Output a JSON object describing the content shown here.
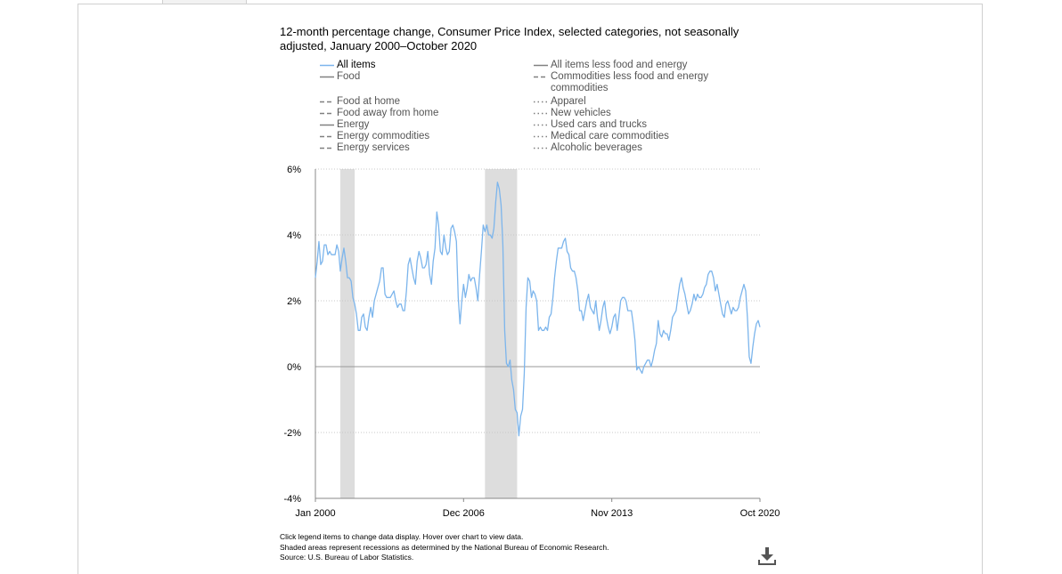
{
  "chart_data": {
    "type": "line",
    "title": "12-month percentage change, Consumer Price Index, selected categories, not seasonally adjusted, January 2000–October 2020",
    "x_tick_labels": [
      "Jan 2000",
      "Dec 2006",
      "Nov 2013",
      "Oct 2020"
    ],
    "y_tick_labels": [
      "6%",
      "4%",
      "2%",
      "0%",
      "-2%",
      "-4%"
    ],
    "ylim": [
      -4,
      6
    ],
    "y_ticks": [
      6,
      4,
      2,
      0,
      -2,
      -4
    ],
    "grid": "horizontal dotted",
    "legend_position": "top",
    "recessions": [
      {
        "start": "2001-03",
        "end": "2001-11"
      },
      {
        "start": "2007-12",
        "end": "2009-06"
      }
    ],
    "series": [
      {
        "name": "All items",
        "visible": true,
        "color": "#7cb5ec",
        "points": [
          [
            "2000-01",
            2.7
          ],
          [
            "2000-02",
            3.2
          ],
          [
            "2000-03",
            3.8
          ],
          [
            "2000-04",
            3.1
          ],
          [
            "2000-05",
            3.2
          ],
          [
            "2000-06",
            3.7
          ],
          [
            "2000-07",
            3.7
          ],
          [
            "2000-08",
            3.4
          ],
          [
            "2000-09",
            3.5
          ],
          [
            "2000-10",
            3.4
          ],
          [
            "2000-11",
            3.4
          ],
          [
            "2000-12",
            3.4
          ],
          [
            "2001-01",
            3.7
          ],
          [
            "2001-02",
            3.5
          ],
          [
            "2001-03",
            2.9
          ],
          [
            "2001-04",
            3.3
          ],
          [
            "2001-05",
            3.6
          ],
          [
            "2001-06",
            3.2
          ],
          [
            "2001-07",
            2.7
          ],
          [
            "2001-08",
            2.7
          ],
          [
            "2001-09",
            2.6
          ],
          [
            "2001-10",
            2.1
          ],
          [
            "2001-11",
            1.9
          ],
          [
            "2001-12",
            1.6
          ],
          [
            "2002-01",
            1.1
          ],
          [
            "2002-02",
            1.1
          ],
          [
            "2002-03",
            1.5
          ],
          [
            "2002-04",
            1.6
          ],
          [
            "2002-05",
            1.2
          ],
          [
            "2002-06",
            1.1
          ],
          [
            "2002-07",
            1.5
          ],
          [
            "2002-08",
            1.8
          ],
          [
            "2002-09",
            1.5
          ],
          [
            "2002-10",
            2.0
          ],
          [
            "2002-11",
            2.2
          ],
          [
            "2002-12",
            2.4
          ],
          [
            "2003-01",
            2.6
          ],
          [
            "2003-02",
            3.0
          ],
          [
            "2003-03",
            3.0
          ],
          [
            "2003-04",
            2.2
          ],
          [
            "2003-05",
            2.1
          ],
          [
            "2003-06",
            2.1
          ],
          [
            "2003-07",
            2.1
          ],
          [
            "2003-08",
            2.2
          ],
          [
            "2003-09",
            2.3
          ],
          [
            "2003-10",
            2.0
          ],
          [
            "2003-11",
            1.8
          ],
          [
            "2003-12",
            1.9
          ],
          [
            "2004-01",
            1.9
          ],
          [
            "2004-02",
            1.7
          ],
          [
            "2004-03",
            1.7
          ],
          [
            "2004-04",
            2.3
          ],
          [
            "2004-05",
            3.1
          ],
          [
            "2004-06",
            3.3
          ],
          [
            "2004-07",
            3.0
          ],
          [
            "2004-08",
            2.7
          ],
          [
            "2004-09",
            2.5
          ],
          [
            "2004-10",
            3.2
          ],
          [
            "2004-11",
            3.5
          ],
          [
            "2004-12",
            3.3
          ],
          [
            "2005-01",
            3.0
          ],
          [
            "2005-02",
            3.0
          ],
          [
            "2005-03",
            3.1
          ],
          [
            "2005-04",
            3.5
          ],
          [
            "2005-05",
            2.8
          ],
          [
            "2005-06",
            2.5
          ],
          [
            "2005-07",
            3.2
          ],
          [
            "2005-08",
            3.6
          ],
          [
            "2005-09",
            4.7
          ],
          [
            "2005-10",
            4.3
          ],
          [
            "2005-11",
            3.5
          ],
          [
            "2005-12",
            3.4
          ],
          [
            "2006-01",
            4.0
          ],
          [
            "2006-02",
            3.6
          ],
          [
            "2006-03",
            3.4
          ],
          [
            "2006-04",
            3.5
          ],
          [
            "2006-05",
            4.2
          ],
          [
            "2006-06",
            4.3
          ],
          [
            "2006-07",
            4.1
          ],
          [
            "2006-08",
            3.8
          ],
          [
            "2006-09",
            2.1
          ],
          [
            "2006-10",
            1.3
          ],
          [
            "2006-11",
            2.0
          ],
          [
            "2006-12",
            2.5
          ],
          [
            "2007-01",
            2.1
          ],
          [
            "2007-02",
            2.4
          ],
          [
            "2007-03",
            2.8
          ],
          [
            "2007-04",
            2.6
          ],
          [
            "2007-05",
            2.7
          ],
          [
            "2007-06",
            2.7
          ],
          [
            "2007-07",
            2.4
          ],
          [
            "2007-08",
            2.0
          ],
          [
            "2007-09",
            2.8
          ],
          [
            "2007-10",
            3.5
          ],
          [
            "2007-11",
            4.3
          ],
          [
            "2007-12",
            4.1
          ],
          [
            "2008-01",
            4.3
          ],
          [
            "2008-02",
            4.0
          ],
          [
            "2008-03",
            4.0
          ],
          [
            "2008-04",
            3.9
          ],
          [
            "2008-05",
            4.2
          ],
          [
            "2008-06",
            5.0
          ],
          [
            "2008-07",
            5.6
          ],
          [
            "2008-08",
            5.4
          ],
          [
            "2008-09",
            4.9
          ],
          [
            "2008-10",
            3.7
          ],
          [
            "2008-11",
            1.1
          ],
          [
            "2008-12",
            0.1
          ],
          [
            "2009-01",
            0.0
          ],
          [
            "2009-02",
            0.2
          ],
          [
            "2009-03",
            -0.4
          ],
          [
            "2009-04",
            -0.7
          ],
          [
            "2009-05",
            -1.3
          ],
          [
            "2009-06",
            -1.4
          ],
          [
            "2009-07",
            -2.1
          ],
          [
            "2009-08",
            -1.5
          ],
          [
            "2009-09",
            -1.3
          ],
          [
            "2009-10",
            -0.2
          ],
          [
            "2009-11",
            1.8
          ],
          [
            "2009-12",
            2.7
          ],
          [
            "2010-01",
            2.6
          ],
          [
            "2010-02",
            2.1
          ],
          [
            "2010-03",
            2.3
          ],
          [
            "2010-04",
            2.2
          ],
          [
            "2010-05",
            2.0
          ],
          [
            "2010-06",
            1.1
          ],
          [
            "2010-07",
            1.2
          ],
          [
            "2010-08",
            1.1
          ],
          [
            "2010-09",
            1.1
          ],
          [
            "2010-10",
            1.2
          ],
          [
            "2010-11",
            1.1
          ],
          [
            "2010-12",
            1.5
          ],
          [
            "2011-01",
            1.6
          ],
          [
            "2011-02",
            2.1
          ],
          [
            "2011-03",
            2.7
          ],
          [
            "2011-04",
            3.2
          ],
          [
            "2011-05",
            3.6
          ],
          [
            "2011-06",
            3.6
          ],
          [
            "2011-07",
            3.6
          ],
          [
            "2011-08",
            3.8
          ],
          [
            "2011-09",
            3.9
          ],
          [
            "2011-10",
            3.5
          ],
          [
            "2011-11",
            3.4
          ],
          [
            "2011-12",
            3.0
          ],
          [
            "2012-01",
            2.9
          ],
          [
            "2012-02",
            2.9
          ],
          [
            "2012-03",
            2.7
          ],
          [
            "2012-04",
            2.3
          ],
          [
            "2012-05",
            1.7
          ],
          [
            "2012-06",
            1.7
          ],
          [
            "2012-07",
            1.4
          ],
          [
            "2012-08",
            1.7
          ],
          [
            "2012-09",
            2.0
          ],
          [
            "2012-10",
            2.2
          ],
          [
            "2012-11",
            1.8
          ],
          [
            "2012-12",
            1.7
          ],
          [
            "2013-01",
            1.6
          ],
          [
            "2013-02",
            2.0
          ],
          [
            "2013-03",
            1.5
          ],
          [
            "2013-04",
            1.1
          ],
          [
            "2013-05",
            1.4
          ],
          [
            "2013-06",
            1.8
          ],
          [
            "2013-07",
            2.0
          ],
          [
            "2013-08",
            1.5
          ],
          [
            "2013-09",
            1.2
          ],
          [
            "2013-10",
            1.0
          ],
          [
            "2013-11",
            1.2
          ],
          [
            "2013-12",
            1.5
          ],
          [
            "2014-01",
            1.6
          ],
          [
            "2014-02",
            1.1
          ],
          [
            "2014-03",
            1.5
          ],
          [
            "2014-04",
            2.0
          ],
          [
            "2014-05",
            2.1
          ],
          [
            "2014-06",
            2.1
          ],
          [
            "2014-07",
            2.0
          ],
          [
            "2014-08",
            1.7
          ],
          [
            "2014-09",
            1.7
          ],
          [
            "2014-10",
            1.7
          ],
          [
            "2014-11",
            1.3
          ],
          [
            "2014-12",
            0.8
          ],
          [
            "2015-01",
            -0.1
          ],
          [
            "2015-02",
            0.0
          ],
          [
            "2015-03",
            -0.1
          ],
          [
            "2015-04",
            -0.2
          ],
          [
            "2015-05",
            0.0
          ],
          [
            "2015-06",
            0.1
          ],
          [
            "2015-07",
            0.2
          ],
          [
            "2015-08",
            0.2
          ],
          [
            "2015-09",
            0.0
          ],
          [
            "2015-10",
            0.2
          ],
          [
            "2015-11",
            0.5
          ],
          [
            "2015-12",
            0.7
          ],
          [
            "2016-01",
            1.4
          ],
          [
            "2016-02",
            1.0
          ],
          [
            "2016-03",
            0.9
          ],
          [
            "2016-04",
            1.1
          ],
          [
            "2016-05",
            1.0
          ],
          [
            "2016-06",
            1.0
          ],
          [
            "2016-07",
            0.8
          ],
          [
            "2016-08",
            1.1
          ],
          [
            "2016-09",
            1.5
          ],
          [
            "2016-10",
            1.6
          ],
          [
            "2016-11",
            1.7
          ],
          [
            "2016-12",
            2.1
          ],
          [
            "2017-01",
            2.5
          ],
          [
            "2017-02",
            2.7
          ],
          [
            "2017-03",
            2.4
          ],
          [
            "2017-04",
            2.2
          ],
          [
            "2017-05",
            1.9
          ],
          [
            "2017-06",
            1.6
          ],
          [
            "2017-07",
            1.7
          ],
          [
            "2017-08",
            1.9
          ],
          [
            "2017-09",
            2.2
          ],
          [
            "2017-10",
            2.0
          ],
          [
            "2017-11",
            2.2
          ],
          [
            "2017-12",
            2.1
          ],
          [
            "2018-01",
            2.1
          ],
          [
            "2018-02",
            2.2
          ],
          [
            "2018-03",
            2.4
          ],
          [
            "2018-04",
            2.5
          ],
          [
            "2018-05",
            2.8
          ],
          [
            "2018-06",
            2.9
          ],
          [
            "2018-07",
            2.9
          ],
          [
            "2018-08",
            2.7
          ],
          [
            "2018-09",
            2.3
          ],
          [
            "2018-10",
            2.5
          ],
          [
            "2018-11",
            2.2
          ],
          [
            "2018-12",
            1.9
          ],
          [
            "2019-01",
            1.6
          ],
          [
            "2019-02",
            1.5
          ],
          [
            "2019-03",
            1.9
          ],
          [
            "2019-04",
            2.0
          ],
          [
            "2019-05",
            1.8
          ],
          [
            "2019-06",
            1.6
          ],
          [
            "2019-07",
            1.8
          ],
          [
            "2019-08",
            1.7
          ],
          [
            "2019-09",
            1.7
          ],
          [
            "2019-10",
            1.8
          ],
          [
            "2019-11",
            2.1
          ],
          [
            "2019-12",
            2.3
          ],
          [
            "2020-01",
            2.5
          ],
          [
            "2020-02",
            2.3
          ],
          [
            "2020-03",
            1.5
          ],
          [
            "2020-04",
            0.3
          ],
          [
            "2020-05",
            0.1
          ],
          [
            "2020-06",
            0.6
          ],
          [
            "2020-07",
            1.0
          ],
          [
            "2020-08",
            1.3
          ],
          [
            "2020-09",
            1.4
          ],
          [
            "2020-10",
            1.2
          ]
        ]
      }
    ]
  },
  "legend": {
    "left": [
      {
        "label": "All items",
        "active": true,
        "style": "solid",
        "color": "#7cb5ec"
      },
      {
        "label": "Food",
        "active": false,
        "style": "solid",
        "color": "#808080"
      },
      {
        "label": "Food at home",
        "active": false,
        "style": "dashed",
        "color": "#808080"
      },
      {
        "label": "Food away from home",
        "active": false,
        "style": "dashed",
        "color": "#808080"
      },
      {
        "label": "Energy",
        "active": false,
        "style": "solid",
        "color": "#808080"
      },
      {
        "label": "Energy commodities",
        "active": false,
        "style": "dashed",
        "color": "#808080"
      },
      {
        "label": "Energy services",
        "active": false,
        "style": "dashed",
        "color": "#808080"
      }
    ],
    "right": [
      {
        "label": "All items less food and energy",
        "active": false,
        "style": "solid",
        "color": "#808080"
      },
      {
        "label": "Commodities less food and energy commodities",
        "active": false,
        "style": "dashed",
        "color": "#808080"
      },
      {
        "label": "Apparel",
        "active": false,
        "style": "dotted",
        "color": "#808080"
      },
      {
        "label": "New vehicles",
        "active": false,
        "style": "dotted",
        "color": "#808080"
      },
      {
        "label": "Used cars and trucks",
        "active": false,
        "style": "dotted",
        "color": "#808080"
      },
      {
        "label": "Medical care commodities",
        "active": false,
        "style": "dotted",
        "color": "#808080"
      },
      {
        "label": "Alcoholic beverages",
        "active": false,
        "style": "dotted",
        "color": "#808080"
      }
    ]
  },
  "notes": {
    "line1": "Click legend items to change data display. Hover over chart to view data.",
    "line2": "Shaded areas represent recessions as determined by the National Bureau of Economic Research.",
    "line3": "Source: U.S. Bureau of Labor Statistics."
  },
  "download_icon": "download-icon",
  "colors": {
    "recession": "#dddddd",
    "series": "#7cb5ec",
    "axis": "#888888"
  }
}
